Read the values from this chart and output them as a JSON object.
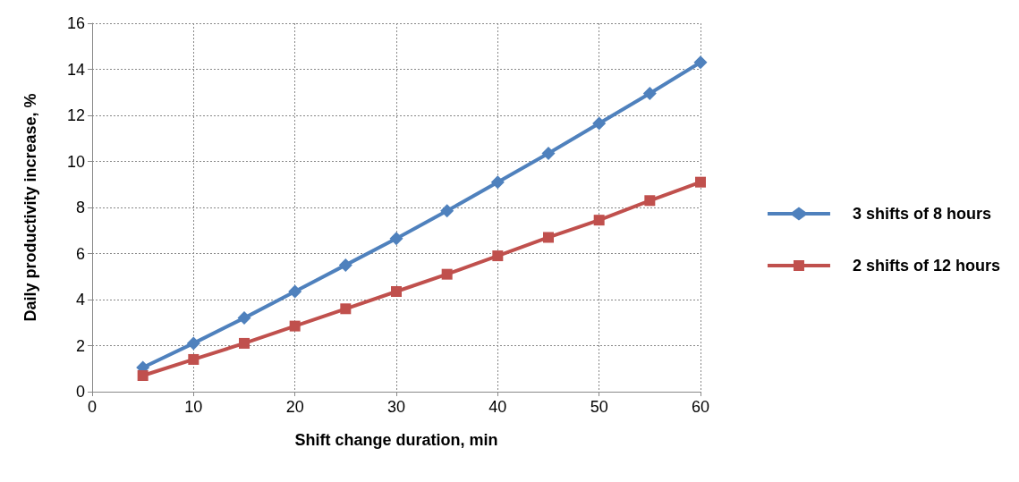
{
  "chart_data": {
    "type": "line",
    "xlabel": "Shift change duration, min",
    "ylabel": "Daily productivity increase, %",
    "x": [
      5,
      10,
      15,
      20,
      25,
      30,
      35,
      40,
      45,
      50,
      55,
      60
    ],
    "series": [
      {
        "name": "3 shifts of 8 hours",
        "color": "#4f81bd",
        "marker": "diamond",
        "values": [
          1.05,
          2.1,
          3.2,
          4.35,
          5.5,
          6.65,
          7.85,
          9.1,
          10.35,
          11.65,
          12.95,
          14.3
        ]
      },
      {
        "name": "2 shifts of 12 hours",
        "color": "#c0504d",
        "marker": "square",
        "values": [
          0.7,
          1.4,
          2.1,
          2.85,
          3.6,
          4.35,
          5.1,
          5.9,
          6.7,
          7.45,
          8.3,
          9.1
        ]
      }
    ],
    "xlim": [
      0,
      60
    ],
    "xticks": [
      0,
      10,
      20,
      30,
      40,
      50,
      60
    ],
    "ylim": [
      0,
      16
    ],
    "yticks": [
      0,
      2,
      4,
      6,
      8,
      10,
      12,
      14,
      16
    ],
    "grid": true,
    "legend": "right",
    "line_style": "solid"
  }
}
